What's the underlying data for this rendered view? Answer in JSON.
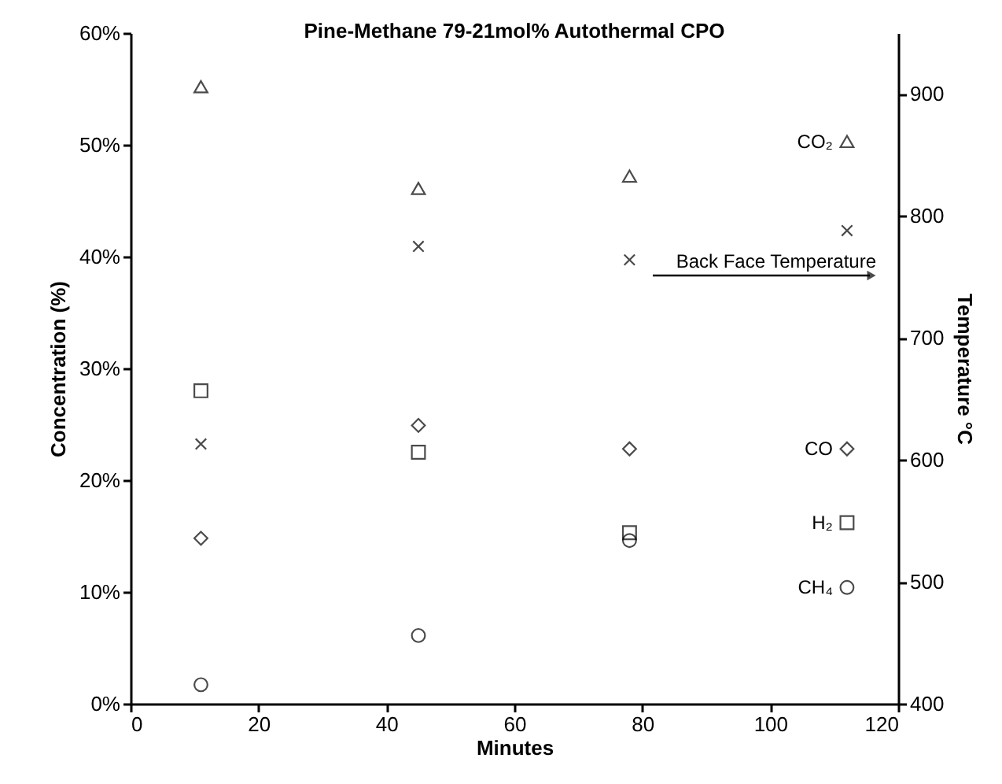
{
  "chart_data": {
    "type": "scatter",
    "title": "Pine-Methane 79-21mol% Autothermal CPO",
    "xlabel": "Minutes",
    "ylabel": "Concentration (%)",
    "y2label": "Temperature °C",
    "x": [
      11,
      45,
      78,
      112
    ],
    "xlim": [
      0,
      120
    ],
    "xticks": [
      0,
      20,
      40,
      60,
      80,
      100,
      120
    ],
    "ylim": [
      0,
      60
    ],
    "yticks": [
      {
        "value": 0,
        "label": "0%"
      },
      {
        "value": 10,
        "label": "10%"
      },
      {
        "value": 20,
        "label": "20%"
      },
      {
        "value": 30,
        "label": "30%"
      },
      {
        "value": 40,
        "label": "40%"
      },
      {
        "value": 50,
        "label": "50%"
      },
      {
        "value": 60,
        "label": "60%"
      }
    ],
    "y2lim": [
      400,
      950
    ],
    "y2ticks": [
      400,
      500,
      600,
      700,
      800,
      900
    ],
    "grid": false,
    "series": [
      {
        "name": "CO₂",
        "color": "#000000",
        "marker": "triangle",
        "values": [
          55.2,
          46.1,
          47.2,
          50.3
        ]
      },
      {
        "name": "CO",
        "color": "#000000",
        "marker": "diamond",
        "values": [
          14.8,
          24.9,
          22.8,
          22.8
        ]
      },
      {
        "name": "H₂",
        "color": "#000000",
        "marker": "square",
        "values": [
          28.0,
          22.5,
          15.3,
          16.2
        ]
      },
      {
        "name": "CH₄",
        "color": "#000000",
        "marker": "circle",
        "values": [
          1.7,
          6.1,
          14.6,
          10.4
        ]
      },
      {
        "name": "Back Face Temperature",
        "color": "#000000",
        "marker": "cross",
        "axis": "y2",
        "values": [
          613,
          775,
          764,
          788
        ]
      }
    ]
  }
}
